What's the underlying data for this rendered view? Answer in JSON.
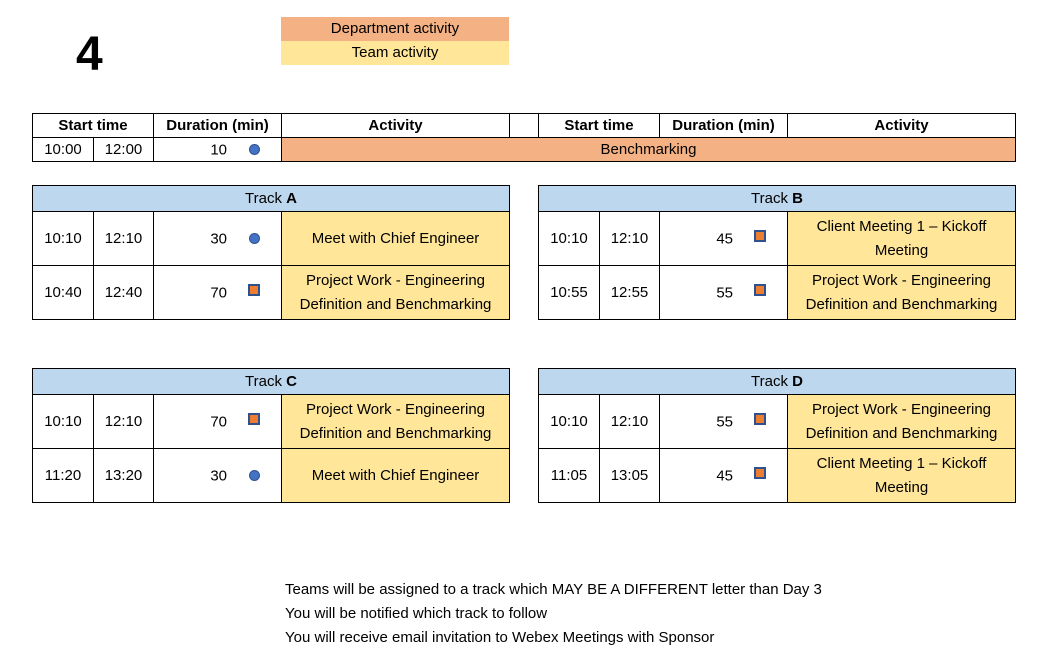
{
  "day_number": "4",
  "legend": {
    "department": "Department activity",
    "team": "Team activity"
  },
  "headers": {
    "start_time": "Start time",
    "duration": "Duration (min)",
    "activity": "Activity"
  },
  "top_row": {
    "start": "10:00",
    "end": "12:00",
    "duration": "10",
    "marker": "circle",
    "activity": "Benchmarking"
  },
  "track_label": "Track",
  "tracks": [
    {
      "letter": "A",
      "rows": [
        {
          "start": "10:10",
          "end": "12:10",
          "duration": "30",
          "marker": "circle",
          "activity": "Meet with Chief Engineer"
        },
        {
          "start": "10:40",
          "end": "12:40",
          "duration": "70",
          "marker": "square",
          "activity": "Project Work - Engineering Definition and Benchmarking"
        }
      ]
    },
    {
      "letter": "B",
      "rows": [
        {
          "start": "10:10",
          "end": "12:10",
          "duration": "45",
          "marker": "square",
          "activity": "Client Meeting 1 – Kickoff Meeting"
        },
        {
          "start": "10:55",
          "end": "12:55",
          "duration": "55",
          "marker": "square",
          "activity": "Project Work - Engineering Definition and Benchmarking"
        }
      ]
    },
    {
      "letter": "C",
      "rows": [
        {
          "start": "10:10",
          "end": "12:10",
          "duration": "70",
          "marker": "square",
          "activity": "Project Work - Engineering Definition and Benchmarking"
        },
        {
          "start": "11:20",
          "end": "13:20",
          "duration": "30",
          "marker": "circle",
          "activity": "Meet with Chief Engineer"
        }
      ]
    },
    {
      "letter": "D",
      "rows": [
        {
          "start": "10:10",
          "end": "12:10",
          "duration": "55",
          "marker": "square",
          "activity": "Project Work - Engineering Definition and Benchmarking"
        },
        {
          "start": "11:05",
          "end": "13:05",
          "duration": "45",
          "marker": "square",
          "activity": "Client Meeting 1 – Kickoff Meeting"
        }
      ]
    }
  ],
  "colors": {
    "department": "#f4b183",
    "team": "#ffe699",
    "track_header": "#bdd7ee",
    "circle_marker": "#4472c4",
    "square_marker": "#ed7d31"
  },
  "notes": [
    "Teams will be assigned to a track which MAY BE A DIFFERENT letter than Day 3",
    "You will be notified which track to follow",
    "You will receive email invitation to Webex Meetings with Sponsor"
  ]
}
